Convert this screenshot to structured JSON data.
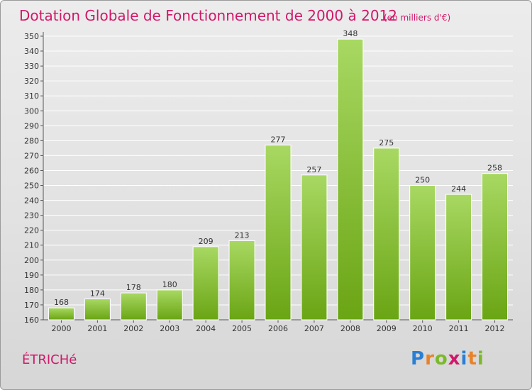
{
  "chart_data": {
    "type": "bar",
    "title": "Dotation Globale de Fonctionnement de 2000 à 2012",
    "unit": "(en milliers d'€)",
    "categories": [
      "2000",
      "2001",
      "2002",
      "2003",
      "2004",
      "2005",
      "2006",
      "2007",
      "2008",
      "2009",
      "2010",
      "2011",
      "2012"
    ],
    "values": [
      168,
      174,
      178,
      180,
      209,
      213,
      277,
      257,
      348,
      275,
      250,
      244,
      258
    ],
    "ylim": [
      160,
      350
    ],
    "yticks": [
      160,
      170,
      180,
      190,
      200,
      210,
      220,
      230,
      240,
      250,
      260,
      270,
      280,
      290,
      300,
      310,
      320,
      330,
      340,
      350
    ],
    "grid": true,
    "bar_color_top": "#a8d862",
    "bar_color_bottom": "#6aa514"
  },
  "commune": "ÉTRICHé",
  "brand": {
    "letters": [
      "P",
      "r",
      "o",
      "x",
      "i",
      "t",
      "i"
    ],
    "colors": [
      "#2a7fd4",
      "#e8822a",
      "#7cb92a",
      "#d0186a",
      "#2a7fd4",
      "#e8822a",
      "#7cb92a"
    ]
  }
}
